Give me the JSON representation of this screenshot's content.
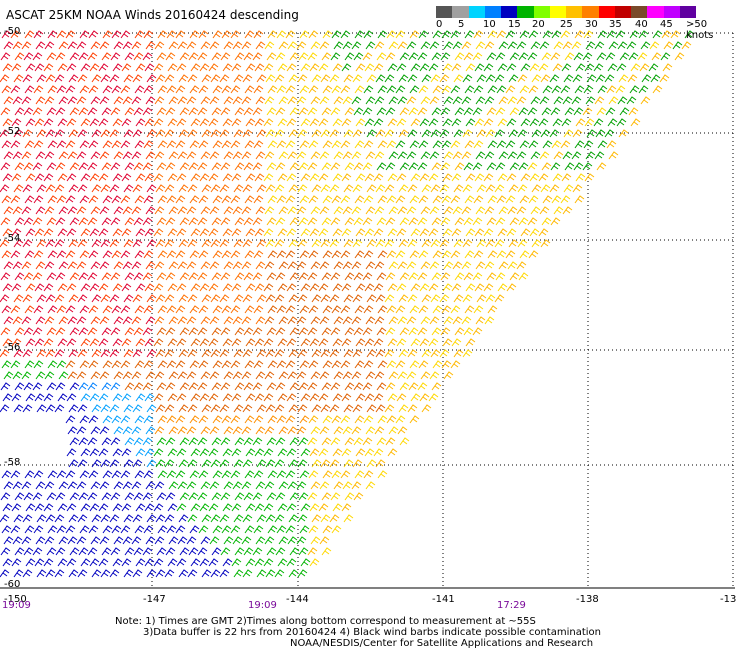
{
  "title": "ASCAT 25KM NOAA Winds 20160424 descending",
  "colorbar": {
    "colors": [
      "#555555",
      "#a0a0a0",
      "#00d4ff",
      "#0080ff",
      "#0000c0",
      "#00b400",
      "#80ff00",
      "#ffff00",
      "#ffc000",
      "#ff8000",
      "#ff0000",
      "#c00000",
      "#7a4a2a",
      "#ff00ff",
      "#c000ff",
      "#6000a0"
    ],
    "labels": [
      "0",
      "5",
      "10",
      "15",
      "20",
      "25",
      "30",
      "35",
      "40",
      "45",
      ">50 knots"
    ]
  },
  "lat_labels": [
    "-50",
    "-52",
    "-54",
    "-56",
    "-58",
    "-60"
  ],
  "lon_labels": [
    "-147",
    "-144",
    "-141",
    "-138",
    "-13"
  ],
  "corner_label": "-150",
  "time_labels": [
    "19:09",
    "19:09",
    "17:29"
  ],
  "notes": [
    "Note: 1) Times are GMT 2)Times along bottom correspond to measurement at ~55S",
    "3)Data buffer is 22 hrs from 20160424 4) Black wind barbs indicate possible contamination",
    "NOAA/NESDIS/Center for Satellite Applications and Research"
  ]
}
